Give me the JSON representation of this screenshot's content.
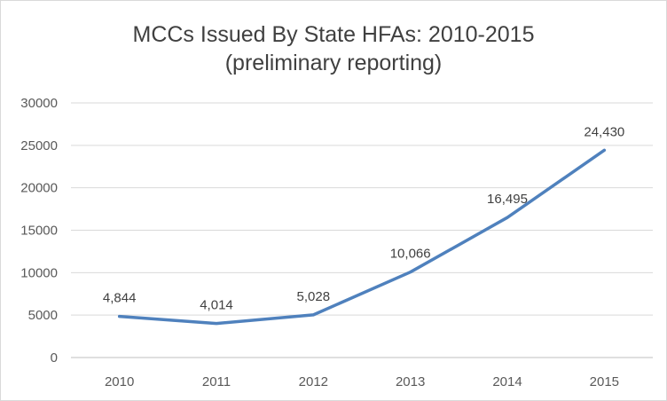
{
  "chart_data": {
    "type": "line",
    "title_line1": "MCCs Issued By State HFAs: 2010-2015",
    "title_line2": "(preliminary reporting)",
    "categories": [
      "2010",
      "2011",
      "2012",
      "2013",
      "2014",
      "2015"
    ],
    "series": [
      {
        "values": [
          4844,
          4014,
          5028,
          10066,
          16495,
          24430
        ],
        "data_labels": [
          "4,844",
          "4,014",
          "5,028",
          "10,066",
          "16,495",
          "24,430"
        ],
        "color": "#4f81bd"
      }
    ],
    "y_ticks": [
      "0",
      "5000",
      "10000",
      "15000",
      "20000",
      "25000",
      "30000"
    ],
    "ylim": [
      0,
      30000
    ],
    "grid": true,
    "legend": "none",
    "xlabel": "",
    "ylabel": ""
  }
}
